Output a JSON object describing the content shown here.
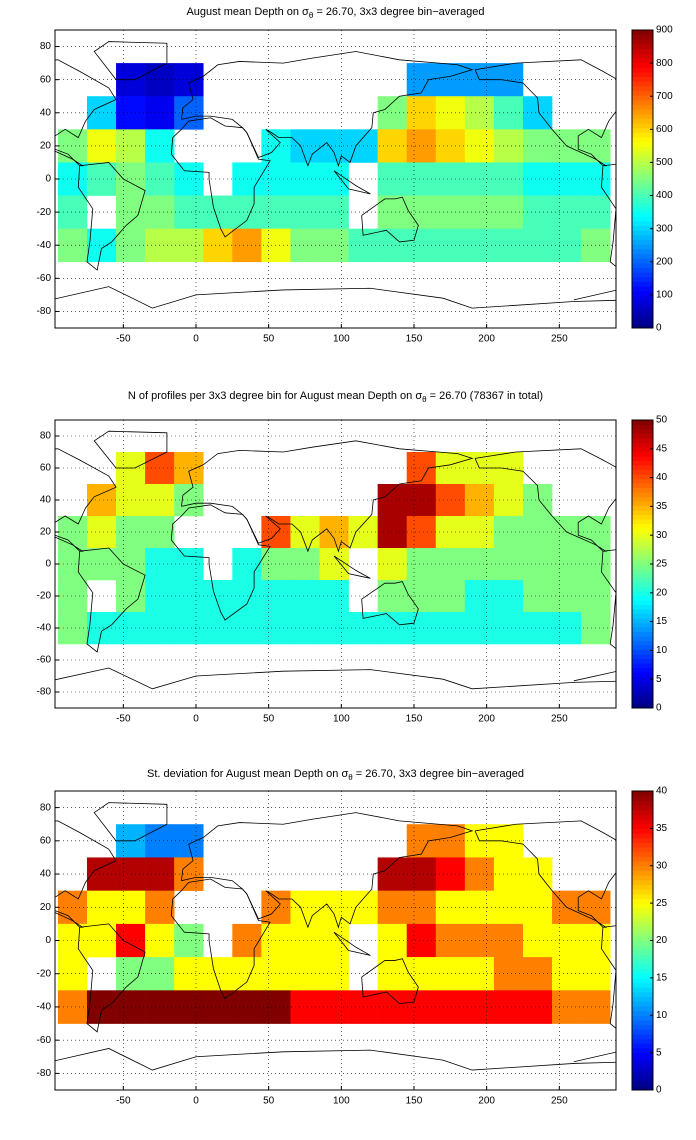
{
  "chart_data": [
    {
      "type": "heatmap",
      "title": [
        "August mean Depth on σ",
        "θ",
        " = 26.70, 3x3 degree bin−averaged"
      ],
      "x": [
        -85,
        -65,
        -45,
        -25,
        -5,
        15,
        35,
        55,
        75,
        95,
        115,
        135,
        155,
        175,
        195,
        215,
        235,
        255,
        275
      ],
      "y": [
        60,
        40,
        20,
        0,
        -20,
        -40
      ],
      "z": [
        [
          null,
          null,
          80,
          60,
          80,
          null,
          null,
          null,
          null,
          null,
          null,
          null,
          250,
          250,
          250,
          250,
          null,
          null,
          null
        ],
        [
          null,
          300,
          120,
          100,
          200,
          null,
          null,
          null,
          null,
          null,
          null,
          450,
          600,
          550,
          500,
          400,
          300,
          null,
          null
        ],
        [
          450,
          550,
          500,
          350,
          null,
          null,
          null,
          350,
          300,
          300,
          300,
          600,
          650,
          600,
          550,
          500,
          450,
          450,
          450
        ],
        [
          350,
          400,
          450,
          400,
          350,
          null,
          350,
          350,
          350,
          350,
          null,
          400,
          400,
          400,
          400,
          400,
          350,
          350,
          350
        ],
        [
          400,
          null,
          450,
          450,
          400,
          400,
          400,
          400,
          400,
          400,
          null,
          450,
          450,
          450,
          450,
          450,
          400,
          400,
          400
        ],
        [
          450,
          350,
          450,
          500,
          500,
          600,
          650,
          550,
          450,
          450,
          400,
          400,
          400,
          400,
          400,
          400,
          400,
          400,
          450
        ]
      ],
      "xlim": [
        -97,
        289
      ],
      "ylim": [
        -90,
        90
      ],
      "xticks": [
        -50,
        0,
        50,
        100,
        150,
        200,
        250
      ],
      "yticks": [
        -80,
        -60,
        -40,
        -20,
        0,
        20,
        40,
        60,
        80
      ],
      "grid": true,
      "colormap": "jet",
      "clim": [
        0,
        900
      ],
      "cticks": [
        0,
        100,
        200,
        300,
        400,
        500,
        600,
        700,
        800,
        900
      ]
    },
    {
      "type": "heatmap",
      "title": [
        "N of profiles per 3x3 degree bin for August mean Depth on σ",
        "θ",
        " = 26.70 (78367 in total)"
      ],
      "x": [
        -85,
        -65,
        -45,
        -25,
        -5,
        15,
        35,
        55,
        75,
        95,
        115,
        135,
        155,
        175,
        195,
        215,
        235,
        255,
        275
      ],
      "y": [
        60,
        40,
        20,
        0,
        -20,
        -40
      ],
      "z": [
        [
          null,
          null,
          30,
          40,
          35,
          null,
          null,
          null,
          null,
          null,
          null,
          null,
          40,
          30,
          30,
          30,
          null,
          null,
          null
        ],
        [
          null,
          35,
          30,
          30,
          25,
          null,
          null,
          null,
          null,
          null,
          null,
          48,
          48,
          40,
          35,
          30,
          25,
          null,
          null
        ],
        [
          25,
          30,
          25,
          25,
          null,
          null,
          null,
          40,
          30,
          35,
          30,
          48,
          40,
          30,
          30,
          25,
          25,
          25,
          25
        ],
        [
          25,
          25,
          25,
          20,
          20,
          null,
          20,
          25,
          25,
          30,
          null,
          30,
          25,
          25,
          25,
          25,
          25,
          25,
          25
        ],
        [
          25,
          null,
          25,
          20,
          20,
          20,
          20,
          20,
          20,
          20,
          null,
          25,
          25,
          25,
          20,
          20,
          25,
          25,
          25
        ],
        [
          25,
          20,
          20,
          20,
          20,
          20,
          20,
          20,
          20,
          20,
          20,
          20,
          20,
          20,
          20,
          20,
          20,
          20,
          25
        ]
      ],
      "xlim": [
        -97,
        289
      ],
      "ylim": [
        -90,
        90
      ],
      "xticks": [
        -50,
        0,
        50,
        100,
        150,
        200,
        250
      ],
      "yticks": [
        -80,
        -60,
        -40,
        -20,
        0,
        20,
        40,
        60,
        80
      ],
      "grid": true,
      "colormap": "jet",
      "clim": [
        0,
        50
      ],
      "cticks": [
        0,
        5,
        10,
        15,
        20,
        25,
        30,
        35,
        40,
        45,
        50
      ]
    },
    {
      "type": "heatmap",
      "title": [
        "St. deviation for August mean Depth on σ",
        "θ",
        " = 26.70, 3x3 degree bin−averaged"
      ],
      "x": [
        -85,
        -65,
        -45,
        -25,
        -5,
        15,
        35,
        55,
        75,
        95,
        115,
        135,
        155,
        175,
        195,
        215,
        235,
        255,
        275
      ],
      "y": [
        60,
        40,
        20,
        0,
        -20,
        -40
      ],
      "z": [
        [
          null,
          null,
          12,
          10,
          10,
          null,
          null,
          null,
          null,
          null,
          null,
          null,
          30,
          30,
          25,
          25,
          null,
          null,
          null
        ],
        [
          null,
          38,
          38,
          38,
          30,
          null,
          null,
          null,
          null,
          null,
          null,
          38,
          38,
          35,
          30,
          25,
          25,
          null,
          null
        ],
        [
          30,
          25,
          25,
          30,
          null,
          null,
          null,
          30,
          25,
          25,
          25,
          30,
          30,
          25,
          25,
          25,
          25,
          30,
          30
        ],
        [
          25,
          25,
          35,
          25,
          20,
          null,
          30,
          25,
          25,
          25,
          null,
          25,
          35,
          30,
          30,
          30,
          25,
          25,
          25
        ],
        [
          25,
          null,
          20,
          20,
          25,
          25,
          25,
          25,
          25,
          25,
          null,
          25,
          25,
          25,
          25,
          30,
          30,
          25,
          25
        ],
        [
          30,
          40,
          40,
          40,
          40,
          40,
          40,
          40,
          35,
          35,
          35,
          35,
          35,
          35,
          35,
          35,
          35,
          30,
          30
        ]
      ],
      "xlim": [
        -97,
        289
      ],
      "ylim": [
        -90,
        90
      ],
      "xticks": [
        -50,
        0,
        50,
        100,
        150,
        200,
        250
      ],
      "yticks": [
        -80,
        -60,
        -40,
        -20,
        0,
        20,
        40,
        60,
        80
      ],
      "grid": true,
      "colormap": "jet",
      "clim": [
        0,
        40
      ],
      "cticks": [
        0,
        5,
        10,
        15,
        20,
        25,
        30,
        35,
        40
      ]
    }
  ]
}
